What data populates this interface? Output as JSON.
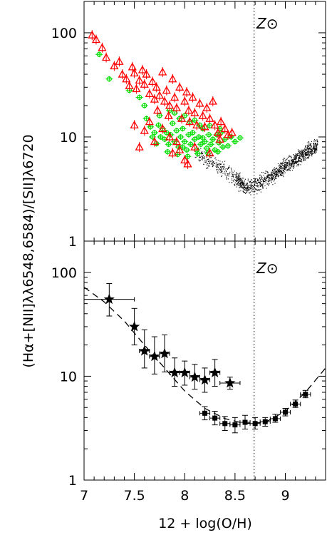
{
  "chart_data": [
    {
      "type": "scatter",
      "panel": "top",
      "annotation": "Z⊙",
      "xlim": [
        7.0,
        9.4
      ],
      "ylim": [
        1,
        200
      ],
      "y_scale": "log",
      "y_ticks": [
        "1",
        "10",
        "100"
      ],
      "solar_line_x": 8.69,
      "colors": {
        "red": "#ff0000",
        "green": "#00dd00",
        "black": "#000000"
      },
      "series": [
        {
          "marker": "triangle",
          "color": "#ff0000",
          "points": [
            [
              7.08,
              95
            ],
            [
              7.12,
              86
            ],
            [
              7.18,
              72
            ],
            [
              7.22,
              58
            ],
            [
              7.3,
              48
            ],
            [
              7.35,
              53
            ],
            [
              7.38,
              40
            ],
            [
              7.42,
              36
            ],
            [
              7.45,
              31
            ],
            [
              7.48,
              47
            ],
            [
              7.5,
              41
            ],
            [
              7.52,
              29
            ],
            [
              7.55,
              35
            ],
            [
              7.58,
              44
            ],
            [
              7.6,
              32
            ],
            [
              7.62,
              40
            ],
            [
              7.65,
              26
            ],
            [
              7.68,
              34
            ],
            [
              7.7,
              23
            ],
            [
              7.72,
              30
            ],
            [
              7.73,
              18
            ],
            [
              7.75,
              25
            ],
            [
              7.78,
              42
            ],
            [
              7.8,
              22
            ],
            [
              7.82,
              28
            ],
            [
              7.84,
              16
            ],
            [
              7.85,
              20
            ],
            [
              7.88,
              36
            ],
            [
              7.9,
              24
            ],
            [
              7.92,
              19
            ],
            [
              7.95,
              30
            ],
            [
              7.97,
              15
            ],
            [
              8.0,
              22
            ],
            [
              8.02,
              27
            ],
            [
              8.04,
              18
            ],
            [
              8.05,
              14
            ],
            [
              8.08,
              24
            ],
            [
              8.1,
              17
            ],
            [
              8.12,
              13
            ],
            [
              8.15,
              21
            ],
            [
              8.18,
              16
            ],
            [
              8.2,
              12.5
            ],
            [
              8.22,
              19
            ],
            [
              8.25,
              15
            ],
            [
              8.28,
              22
            ],
            [
              8.3,
              13
            ],
            [
              8.33,
              11
            ],
            [
              8.36,
              14
            ],
            [
              8.4,
              12
            ],
            [
              8.43,
              10.5
            ],
            [
              8.47,
              11
            ],
            [
              7.65,
              14
            ],
            [
              7.78,
              12
            ],
            [
              7.92,
              9
            ],
            [
              7.95,
              7.5
            ],
            [
              8.0,
              6
            ],
            [
              8.03,
              5.5
            ],
            [
              7.88,
              7
            ],
            [
              7.6,
              11.5
            ],
            [
              7.5,
              13
            ],
            [
              7.7,
              9
            ],
            [
              8.1,
              8
            ],
            [
              8.25,
              7
            ],
            [
              8.35,
              9.5
            ],
            [
              7.55,
              8
            ],
            [
              7.85,
              10
            ]
          ]
        },
        {
          "marker": "circle",
          "color": "#00dd00",
          "points": [
            [
              7.15,
              62
            ],
            [
              7.25,
              36
            ],
            [
              7.45,
              28
            ],
            [
              7.55,
              24
            ],
            [
              7.6,
              20
            ],
            [
              7.62,
              15
            ],
            [
              7.66,
              12.5
            ],
            [
              7.7,
              11
            ],
            [
              7.74,
              13
            ],
            [
              7.76,
              10
            ],
            [
              7.78,
              12
            ],
            [
              7.8,
              9.5
            ],
            [
              7.82,
              11
            ],
            [
              7.84,
              8.5
            ],
            [
              7.86,
              10.5
            ],
            [
              7.88,
              13.5
            ],
            [
              7.9,
              9
            ],
            [
              7.92,
              11.5
            ],
            [
              7.94,
              8
            ],
            [
              7.96,
              10
            ],
            [
              7.98,
              12
            ],
            [
              8.0,
              9
            ],
            [
              8.02,
              7.5
            ],
            [
              8.04,
              10.5
            ],
            [
              8.06,
              8.5
            ],
            [
              8.08,
              11
            ],
            [
              8.1,
              9.5
            ],
            [
              8.12,
              7.5
            ],
            [
              8.14,
              10
            ],
            [
              8.16,
              8.5
            ],
            [
              8.18,
              12
            ],
            [
              8.2,
              9
            ],
            [
              8.22,
              7.8
            ],
            [
              8.24,
              10.5
            ],
            [
              8.26,
              8.5
            ],
            [
              8.28,
              9.5
            ],
            [
              8.3,
              7.5
            ],
            [
              8.32,
              10.5
            ],
            [
              8.34,
              8.8
            ],
            [
              8.36,
              11
            ],
            [
              8.38,
              8
            ],
            [
              8.4,
              9.5
            ],
            [
              8.43,
              8.2
            ],
            [
              8.46,
              10
            ],
            [
              8.5,
              9
            ],
            [
              8.55,
              9.8
            ],
            [
              7.75,
              16
            ],
            [
              7.85,
              18
            ],
            [
              7.95,
              15
            ],
            [
              8.05,
              14
            ],
            [
              8.15,
              13
            ],
            [
              8.25,
              12.8
            ],
            [
              8.35,
              12
            ],
            [
              7.72,
              8.6
            ],
            [
              7.83,
              7.2
            ],
            [
              7.93,
              6.8
            ],
            [
              8.03,
              6.5
            ],
            [
              8.13,
              6.9
            ],
            [
              8.23,
              7
            ],
            [
              8.33,
              7.2
            ],
            [
              7.9,
              17
            ],
            [
              8.0,
              16
            ],
            [
              8.1,
              14.5
            ],
            [
              7.68,
              10
            ],
            [
              7.98,
              8
            ],
            [
              8.18,
              9.8
            ]
          ]
        }
      ]
    },
    {
      "type": "line",
      "panel": "bottom",
      "annotation": "Z⊙",
      "xlim": [
        7.0,
        9.4
      ],
      "ylim": [
        1,
        200
      ],
      "y_scale": "log",
      "x_ticks": [
        "7",
        "7.5",
        "8",
        "8.5",
        "9"
      ],
      "y_ticks": [
        "1",
        "10",
        "100"
      ],
      "xlabel": "12 + log(O/H)",
      "ylabel": "(Hα+[NII]λλ6548,6584)/[SII]λ6720",
      "solar_line_x": 8.69,
      "series": [
        {
          "marker": "star",
          "points": [
            {
              "x": 7.25,
              "y": 55,
              "xerr": 0.25,
              "ylo": 38,
              "yhi": 78
            },
            {
              "x": 7.5,
              "y": 30,
              "xerr": 0.0,
              "ylo": 20,
              "yhi": 45
            },
            {
              "x": 7.6,
              "y": 17.5,
              "xerr": 0.05,
              "ylo": 12,
              "yhi": 28
            },
            {
              "x": 7.7,
              "y": 15.5,
              "xerr": 0.05,
              "ylo": 10.5,
              "yhi": 24
            },
            {
              "x": 7.8,
              "y": 16.5,
              "xerr": 0.05,
              "ylo": 11,
              "yhi": 25
            },
            {
              "x": 7.9,
              "y": 10.8,
              "xerr": 0.05,
              "ylo": 8,
              "yhi": 15
            },
            {
              "x": 8.0,
              "y": 10.8,
              "xerr": 0.05,
              "ylo": 8.2,
              "yhi": 14
            },
            {
              "x": 8.1,
              "y": 9.8,
              "xerr": 0.05,
              "ylo": 7.5,
              "yhi": 13
            },
            {
              "x": 8.2,
              "y": 9.2,
              "xerr": 0.05,
              "ylo": 7,
              "yhi": 12
            },
            {
              "x": 8.3,
              "y": 10.8,
              "xerr": 0.05,
              "ylo": 8,
              "yhi": 14.5
            },
            {
              "x": 8.45,
              "y": 8.6,
              "xerr": 0.1,
              "ylo": 7.5,
              "yhi": 9.8
            }
          ]
        },
        {
          "marker": "square",
          "points": [
            {
              "x": 8.2,
              "y": 4.4,
              "xerr": 0.05,
              "ylo": 3.8,
              "yhi": 5.1
            },
            {
              "x": 8.3,
              "y": 3.95,
              "xerr": 0.05,
              "ylo": 3.4,
              "yhi": 4.6
            },
            {
              "x": 8.4,
              "y": 3.5,
              "xerr": 0.05,
              "ylo": 3.0,
              "yhi": 4.1
            },
            {
              "x": 8.5,
              "y": 3.4,
              "xerr": 0.05,
              "ylo": 2.85,
              "yhi": 4.0
            },
            {
              "x": 8.6,
              "y": 3.6,
              "xerr": 0.05,
              "ylo": 3.1,
              "yhi": 4.2
            },
            {
              "x": 8.7,
              "y": 3.5,
              "xerr": 0.05,
              "ylo": 3.1,
              "yhi": 4.0
            },
            {
              "x": 8.8,
              "y": 3.65,
              "xerr": 0.05,
              "ylo": 3.3,
              "yhi": 4.0
            },
            {
              "x": 8.9,
              "y": 3.9,
              "xerr": 0.05,
              "ylo": 3.6,
              "yhi": 4.3
            },
            {
              "x": 9.0,
              "y": 4.5,
              "xerr": 0.05,
              "ylo": 4.15,
              "yhi": 4.9
            },
            {
              "x": 9.1,
              "y": 5.4,
              "xerr": 0.05,
              "ylo": 5.0,
              "yhi": 5.9
            },
            {
              "x": 9.2,
              "y": 6.7,
              "xerr": 0.05,
              "ylo": 6.2,
              "yhi": 7.3
            }
          ]
        },
        {
          "style": "dashed-fit",
          "points": [
            [
              7.0,
              72
            ],
            [
              7.2,
              52
            ],
            [
              7.4,
              34
            ],
            [
              7.6,
              20
            ],
            [
              7.8,
              12
            ],
            [
              8.0,
              7.2
            ],
            [
              8.2,
              4.9
            ],
            [
              8.4,
              3.9
            ],
            [
              8.6,
              3.5
            ],
            [
              8.8,
              3.6
            ],
            [
              9.0,
              4.6
            ],
            [
              9.2,
              7.0
            ],
            [
              9.4,
              12
            ]
          ]
        }
      ]
    }
  ]
}
